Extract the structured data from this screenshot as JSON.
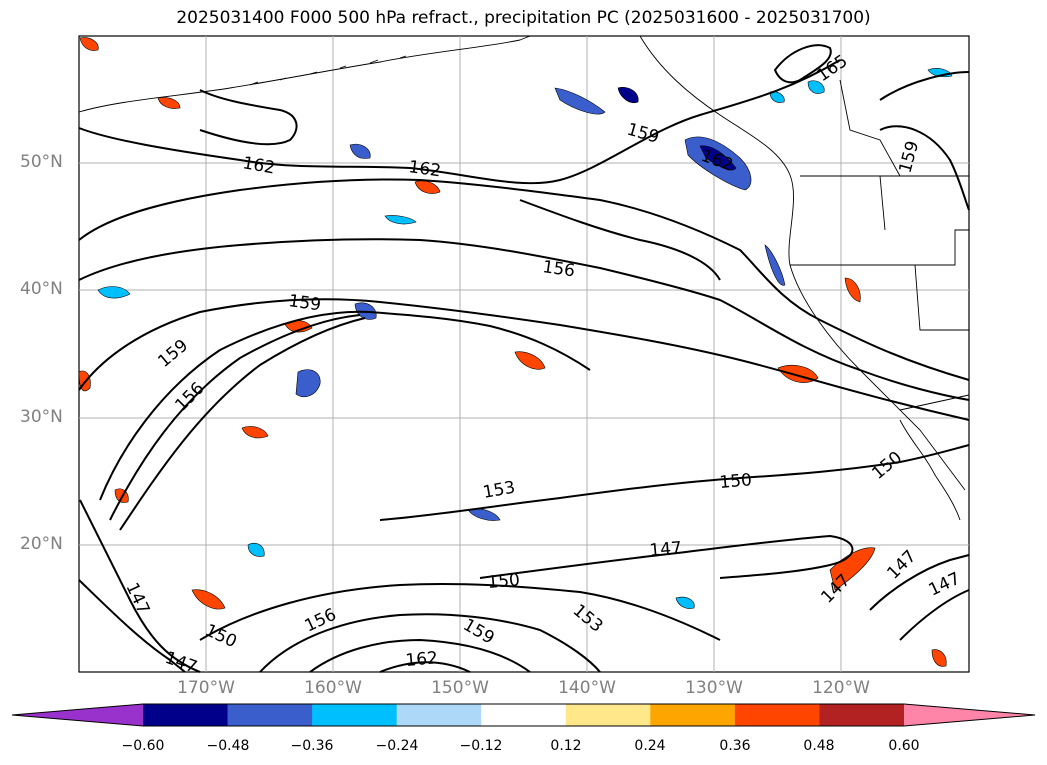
{
  "title": "2025031400 F000 500 hPa refract., precipitation PC (2025031600 - 2025031700)",
  "map": {
    "lat_labels": [
      "50°N",
      "40°N",
      "30°N",
      "20°N"
    ],
    "lon_labels": [
      "170°W",
      "160°W",
      "150°W",
      "140°W",
      "130°W",
      "120°W"
    ],
    "gridlines": true
  },
  "contours": {
    "labels": [
      "162",
      "162",
      "159",
      "156",
      "159",
      "159",
      "156",
      "153",
      "150",
      "147",
      "150",
      "147",
      "150",
      "153",
      "156",
      "159",
      "162",
      "147",
      "150",
      "147",
      "147",
      "147",
      "165",
      "159",
      "162",
      "150"
    ]
  },
  "colorbar": {
    "tick_labels": [
      "−0.60",
      "−0.48",
      "−0.36",
      "−0.24",
      "−0.12",
      "0.12",
      "0.24",
      "0.36",
      "0.48",
      "0.60"
    ],
    "colors": [
      "#9932cc",
      "#00008b",
      "#3a5fcd",
      "#00bfff",
      "#add8f8",
      "#ffffff",
      "#ffe78a",
      "#ffa500",
      "#ff4500",
      "#b22222",
      "#ff85a8"
    ]
  }
}
